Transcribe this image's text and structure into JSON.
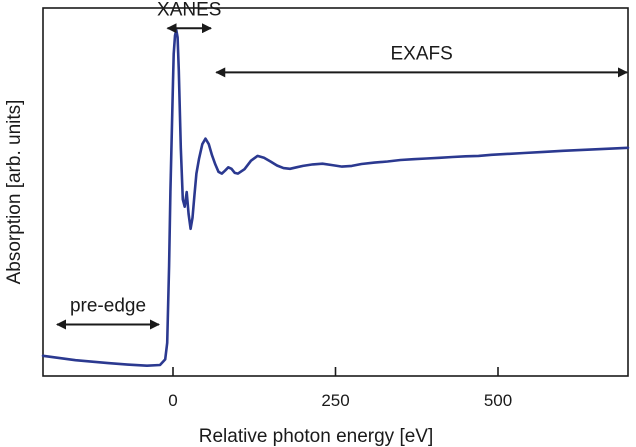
{
  "chart_data": {
    "type": "line",
    "xlabel": "Relative photon energy [eV]",
    "ylabel": "Absorption [arb. units]",
    "xlim": [
      -200,
      700
    ],
    "ylim": [
      0,
      1
    ],
    "x_ticks": [
      0,
      250,
      500
    ],
    "y_ticks_labeled": false,
    "grid": false,
    "legend": "none",
    "line_color": "#2b3990",
    "series": [
      {
        "x": [
          -200,
          -150,
          -100,
          -70,
          -40,
          -20,
          -12,
          -9,
          -6,
          -4,
          -2,
          0,
          1,
          3,
          5,
          7,
          9,
          12,
          15,
          18,
          21,
          24,
          27,
          30,
          33,
          36,
          40,
          45,
          50,
          55,
          60,
          65,
          70,
          75,
          80,
          85,
          90,
          95,
          100,
          110,
          120,
          130,
          140,
          150,
          160,
          170,
          180,
          190,
          200,
          215,
          230,
          245,
          260,
          275,
          290,
          310,
          330,
          350,
          370,
          390,
          410,
          430,
          450,
          470,
          490,
          510,
          540,
          570,
          600,
          650,
          700
        ],
        "y": [
          0.055,
          0.043,
          0.035,
          0.031,
          0.028,
          0.03,
          0.045,
          0.09,
          0.3,
          0.5,
          0.65,
          0.8,
          0.875,
          0.925,
          0.94,
          0.92,
          0.83,
          0.62,
          0.48,
          0.46,
          0.5,
          0.44,
          0.4,
          0.43,
          0.49,
          0.55,
          0.59,
          0.63,
          0.645,
          0.63,
          0.6,
          0.575,
          0.555,
          0.55,
          0.558,
          0.567,
          0.563,
          0.552,
          0.55,
          0.562,
          0.585,
          0.598,
          0.593,
          0.583,
          0.572,
          0.565,
          0.563,
          0.567,
          0.571,
          0.575,
          0.577,
          0.573,
          0.569,
          0.571,
          0.576,
          0.58,
          0.583,
          0.587,
          0.589,
          0.591,
          0.593,
          0.595,
          0.597,
          0.598,
          0.601,
          0.603,
          0.606,
          0.609,
          0.612,
          0.616,
          0.62
        ]
      }
    ],
    "annotations": [
      {
        "text": "XANES",
        "x_from": -10,
        "x_to": 60,
        "y": 0.945
      },
      {
        "text": "EXAFS",
        "x_from": 65,
        "x_to": 700,
        "y": 0.825
      },
      {
        "text": "pre-edge",
        "x_from": -180,
        "x_to": -20,
        "y": 0.14
      }
    ]
  }
}
